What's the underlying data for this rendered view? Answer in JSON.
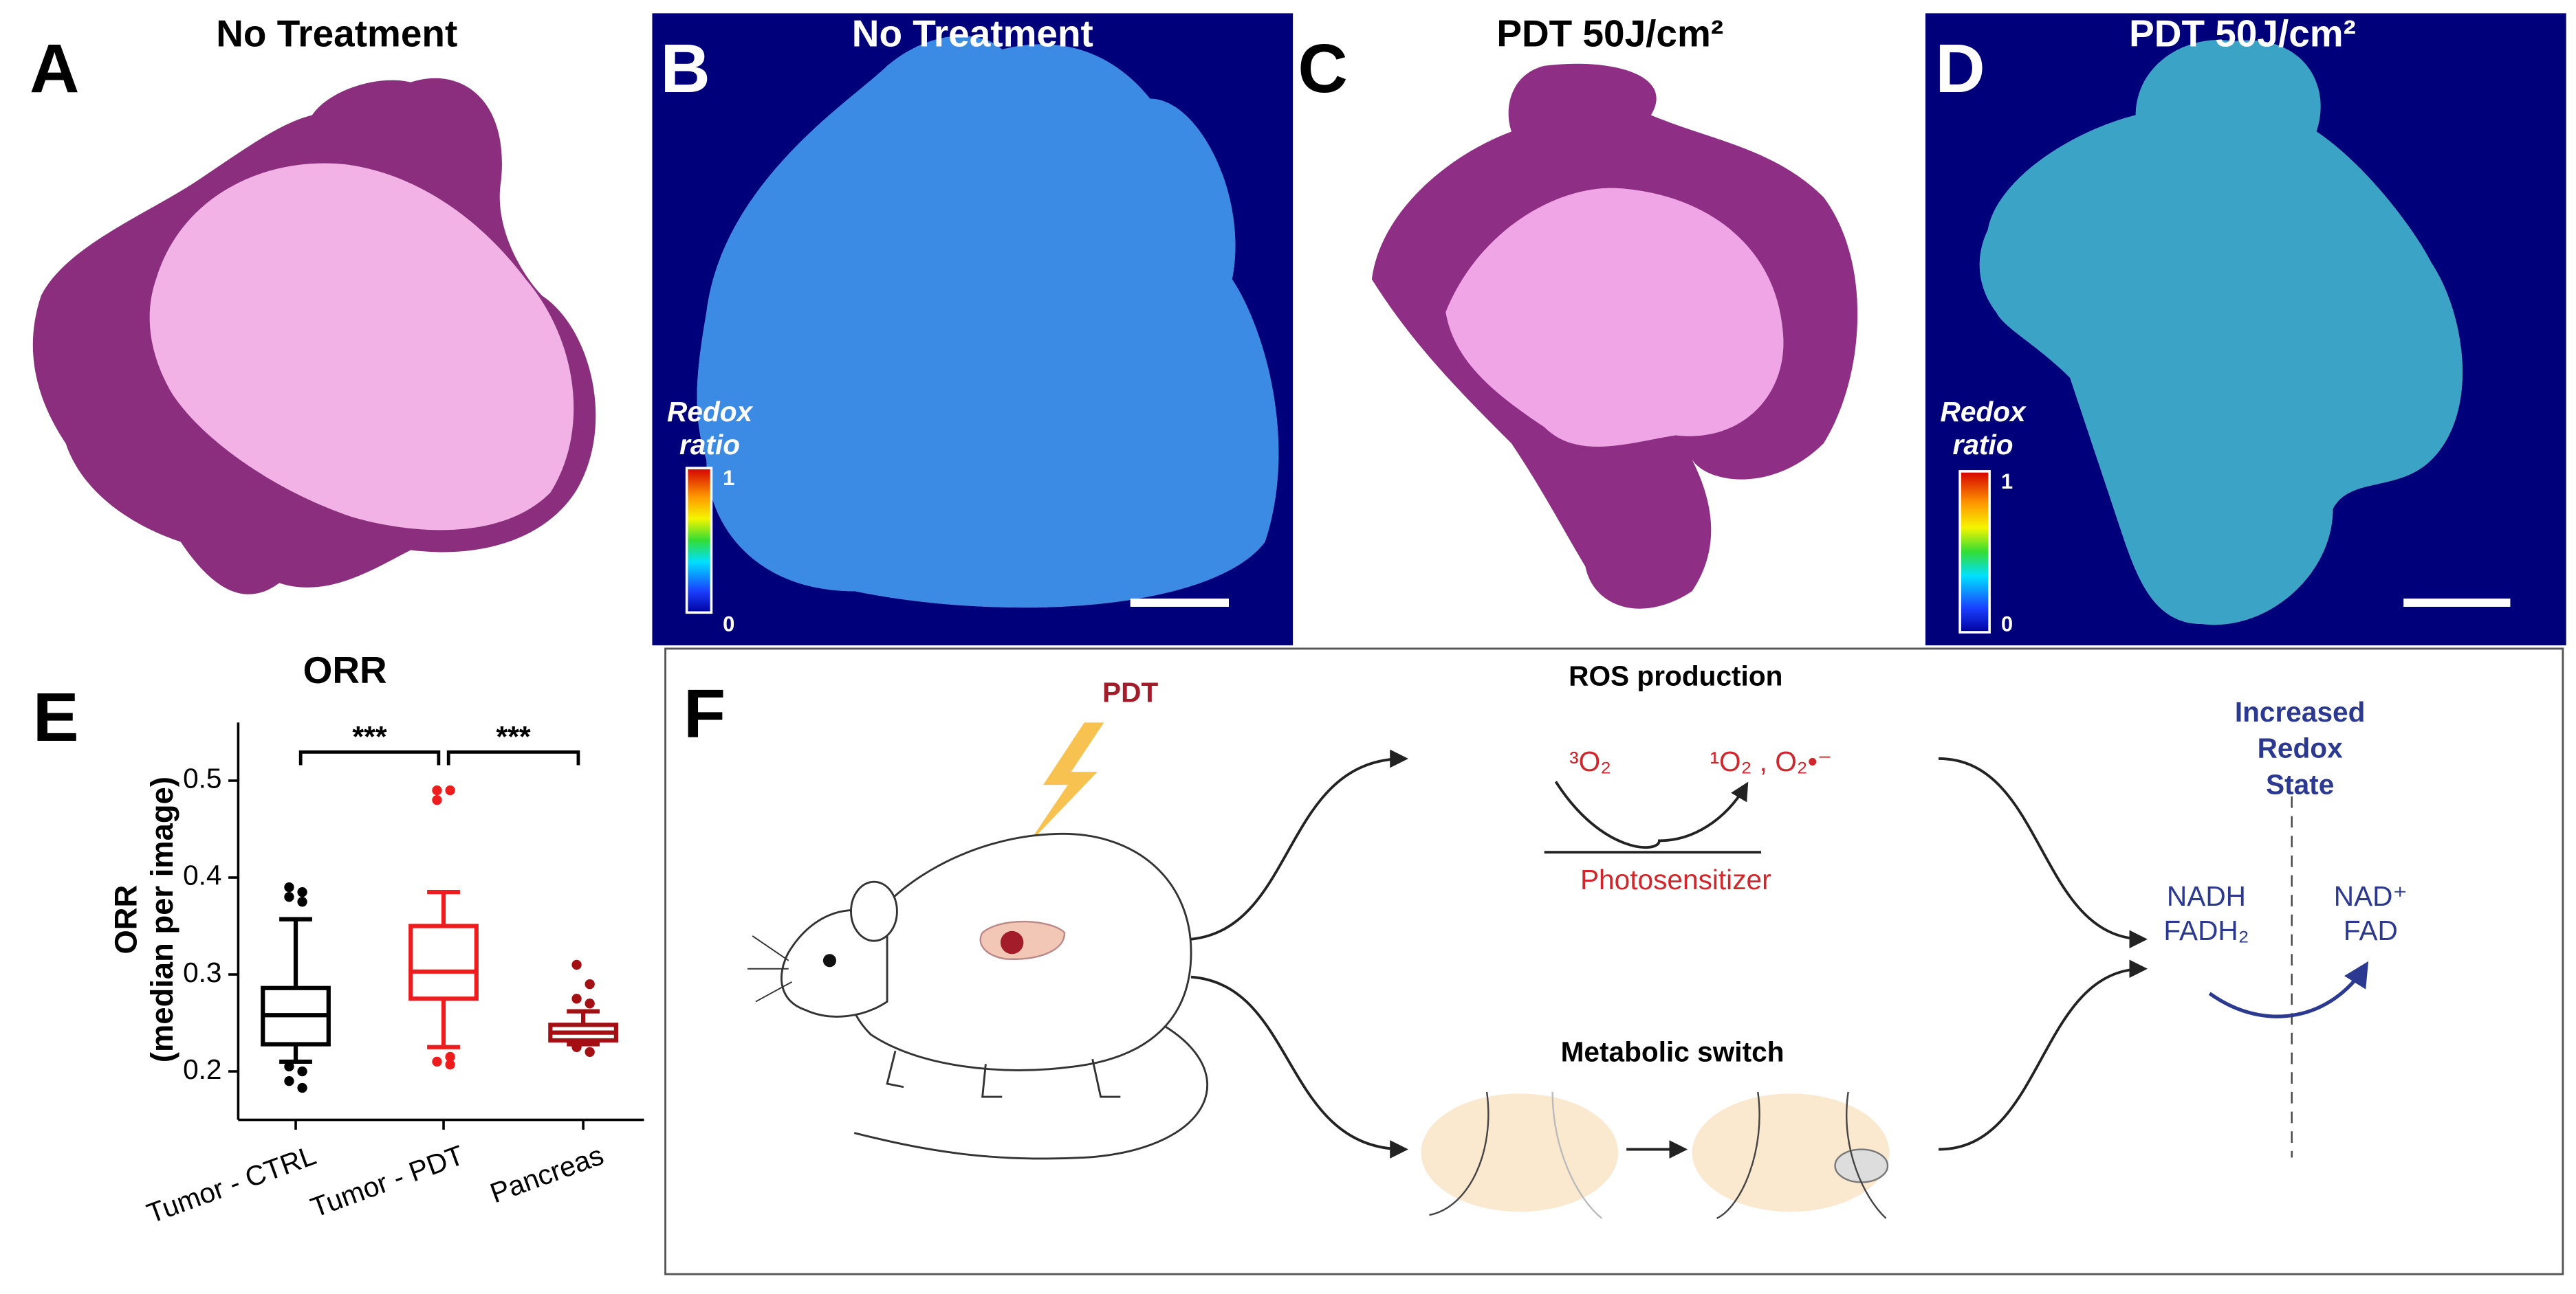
{
  "panels": {
    "A": {
      "letter": "A",
      "title": "No Treatment"
    },
    "B": {
      "letter": "B",
      "title": "No Treatment",
      "colorbar_label": [
        "Redox",
        "ratio"
      ],
      "colorbar_max": "1",
      "colorbar_min": "0"
    },
    "C": {
      "letter": "C",
      "title": "PDT 50J/cm²"
    },
    "D": {
      "letter": "D",
      "title": "PDT 50J/cm²",
      "colorbar_label": [
        "Redox",
        "ratio"
      ],
      "colorbar_max": "1",
      "colorbar_min": "0"
    },
    "E": {
      "letter": "E"
    },
    "F": {
      "letter": "F"
    }
  },
  "chart_data": {
    "type": "box",
    "title": "ORR",
    "y_label": "ORR",
    "y_label_sub": "(median per image)",
    "categories": [
      "Tumor - CTRL",
      "Tumor - PDT",
      "Pancreas"
    ],
    "ylim": [
      0.15,
      0.56
    ],
    "yticks": [
      0.2,
      0.3,
      0.4,
      0.5
    ],
    "boxes": [
      {
        "color": "#000000",
        "whisker_low": 0.21,
        "q1": 0.228,
        "median": 0.258,
        "q3": 0.286,
        "whisker_high": 0.357,
        "outliers": [
          0.39,
          0.385,
          0.38,
          0.375,
          0.205,
          0.2,
          0.19,
          0.183
        ]
      },
      {
        "color": "#ee1c1c",
        "whisker_low": 0.225,
        "q1": 0.275,
        "median": 0.303,
        "q3": 0.35,
        "whisker_high": 0.385,
        "outliers": [
          0.49,
          0.49,
          0.48,
          0.215,
          0.21,
          0.207
        ]
      },
      {
        "color": "#a30f12",
        "whisker_low": 0.228,
        "q1": 0.232,
        "median": 0.24,
        "q3": 0.248,
        "whisker_high": 0.262,
        "outliers": [
          0.31,
          0.29,
          0.275,
          0.27,
          0.225,
          0.22
        ]
      }
    ],
    "significance": [
      {
        "from": 0,
        "to": 1,
        "label": "***"
      },
      {
        "from": 1,
        "to": 2,
        "label": "***"
      }
    ]
  },
  "diagram": {
    "pdt": "PDT",
    "ros_title": "ROS production",
    "triplet_oxygen": "³O₂",
    "ros_products": "¹O₂ , O₂•⁻",
    "photosensitizer": "Photosensitizer",
    "metabolic_title": "Metabolic switch",
    "redox_title": [
      "Increased",
      "Redox",
      "State"
    ],
    "reduced": [
      "NADH",
      "FADH₂"
    ],
    "oxidized": [
      "NAD⁺",
      "FAD"
    ]
  }
}
